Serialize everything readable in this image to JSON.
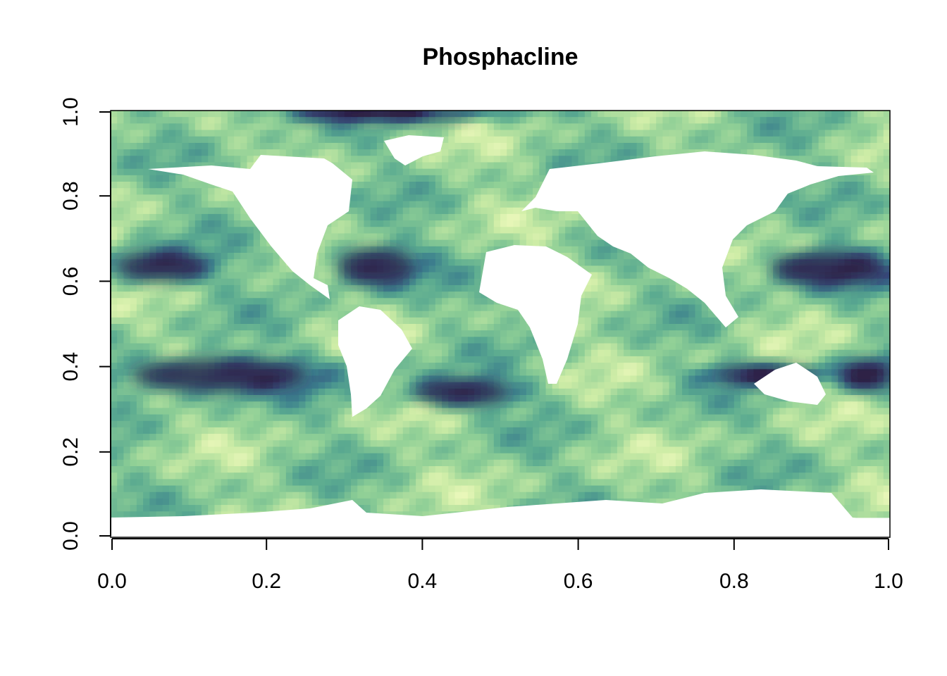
{
  "chart_data": {
    "type": "heatmap",
    "title": "Phosphacline",
    "xlabel": "",
    "ylabel": "",
    "xlim": [
      0,
      1
    ],
    "ylim": [
      0,
      1
    ],
    "x_ticks": [
      "0.0",
      "0.2",
      "0.4",
      "0.6",
      "0.8",
      "1.0"
    ],
    "y_ticks": [
      "0.0",
      "0.2",
      "0.4",
      "0.6",
      "0.8",
      "1.0"
    ],
    "legend": "none",
    "colormap": [
      "#f8fdc4",
      "#cdeca6",
      "#8fcf96",
      "#5aaa90",
      "#3c7f8d",
      "#37507f",
      "#2c1f45"
    ],
    "nodata_color": "#ffffff",
    "missing_band": [
      0.0,
      0.045
    ],
    "dark_regions": [
      {
        "x": 0.065,
        "y": 0.635,
        "rx": 0.07,
        "ry": 0.04
      },
      {
        "x": 0.14,
        "y": 0.38,
        "rx": 0.14,
        "ry": 0.045
      },
      {
        "x": 0.34,
        "y": 0.635,
        "rx": 0.06,
        "ry": 0.05
      },
      {
        "x": 0.45,
        "y": 0.34,
        "rx": 0.075,
        "ry": 0.035
      },
      {
        "x": 0.92,
        "y": 0.63,
        "rx": 0.09,
        "ry": 0.045
      },
      {
        "x": 0.84,
        "y": 0.38,
        "rx": 0.08,
        "ry": 0.025
      },
      {
        "x": 0.97,
        "y": 0.38,
        "rx": 0.04,
        "ry": 0.04
      },
      {
        "x": 0.35,
        "y": 0.99,
        "rx": 0.15,
        "ry": 0.015
      }
    ]
  }
}
